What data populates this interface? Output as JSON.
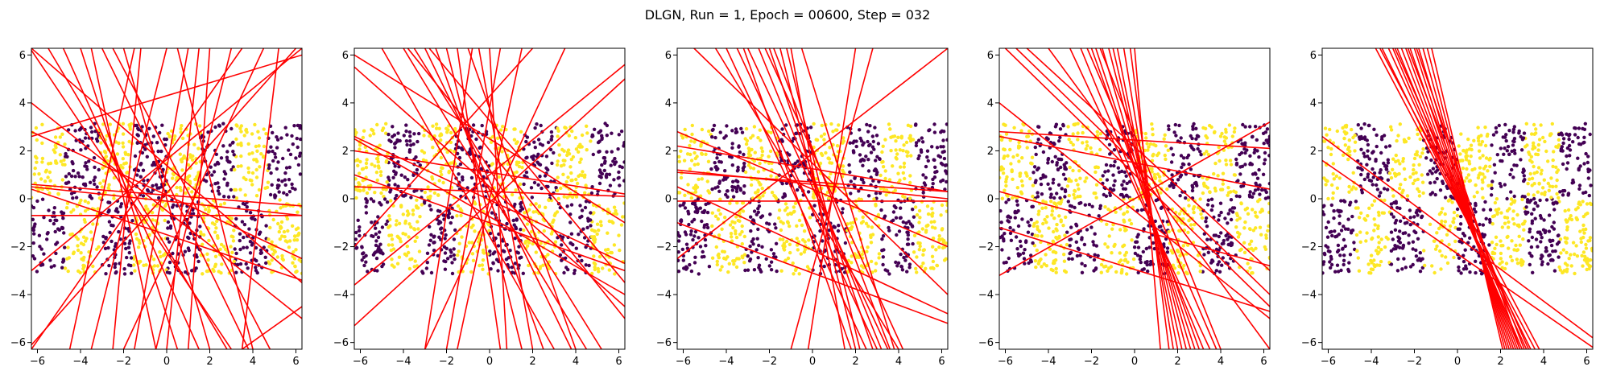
{
  "figure": {
    "title": "DLGN, Run = 1, Epoch = 00600, Step = 032"
  },
  "colors": {
    "class0": "#440154",
    "class1": "#fde725",
    "lines": "#ff0000"
  },
  "chart_data": {
    "type": "scatter",
    "title": "DLGN, Run = 1, Epoch = 00600, Step = 032",
    "xlim": [
      -6.28,
      6.28
    ],
    "ylim": [
      -6.28,
      6.28
    ],
    "xticks": [
      -6,
      -4,
      -2,
      0,
      2,
      4,
      6
    ],
    "yticks": [
      -6,
      -4,
      -2,
      0,
      2,
      4,
      6
    ],
    "grid": false,
    "data_region": {
      "x": [
        -6.28,
        6.28
      ],
      "y": [
        -3.14,
        3.14
      ]
    },
    "class_pattern": "checkerboard: alternating column bands of width 1.57; upper half (y>0) and lower half (y<0) colors swapped",
    "panels": [
      {
        "type": "scatter",
        "lines": [
          [
            -6.28,
            6.2,
            3.0,
            -6.28
          ],
          [
            -6.28,
            -6.1,
            6.0,
            6.28
          ],
          [
            -6.28,
            2.6,
            6.28,
            6.0
          ],
          [
            -6.28,
            0.6,
            6.28,
            -0.3
          ],
          [
            -6.28,
            0.5,
            6.28,
            -0.7
          ],
          [
            -6.28,
            0.4,
            6.28,
            -3.4
          ],
          [
            -6.28,
            -0.7,
            6.28,
            -0.7
          ],
          [
            -6.28,
            -6.28,
            3.5,
            6.28
          ],
          [
            -5.5,
            6.28,
            2.8,
            -6.28
          ],
          [
            -4.8,
            6.28,
            1.5,
            -6.28
          ],
          [
            -4.0,
            6.28,
            0.5,
            -6.28
          ],
          [
            -3.5,
            6.28,
            -0.5,
            -6.28
          ],
          [
            -3.0,
            6.28,
            3.8,
            -6.28
          ],
          [
            -2.5,
            6.28,
            4.8,
            -6.28
          ],
          [
            -2.0,
            6.28,
            2.0,
            -6.28
          ],
          [
            -1.5,
            6.28,
            -4.5,
            -6.28
          ],
          [
            -1.2,
            6.28,
            -2.5,
            -6.28
          ],
          [
            0.0,
            6.28,
            -3.5,
            -6.28
          ],
          [
            1.0,
            6.28,
            -1.5,
            -6.28
          ],
          [
            1.5,
            6.28,
            0.0,
            -6.28
          ],
          [
            2.0,
            6.28,
            1.0,
            -6.28
          ],
          [
            3.0,
            6.28,
            -0.5,
            -6.28
          ],
          [
            4.5,
            6.28,
            -2.0,
            -6.28
          ],
          [
            5.2,
            6.28,
            3.5,
            -6.28
          ],
          [
            -6.28,
            2.8,
            6.28,
            -2.5
          ],
          [
            0.5,
            6.28,
            4.0,
            -6.28
          ],
          [
            -6.28,
            6.28,
            6.28,
            -3.5
          ],
          [
            -6.28,
            -3.0,
            6.28,
            6.28
          ],
          [
            -6.28,
            4.0,
            6.28,
            -5.0
          ],
          [
            3.5,
            -6.28,
            6.28,
            -4.5
          ]
        ]
      },
      {
        "type": "scatter",
        "lines": [
          [
            -6.28,
            6.0,
            6.28,
            -1.0
          ],
          [
            -6.28,
            5.5,
            6.28,
            -4.5
          ],
          [
            -6.28,
            2.6,
            6.28,
            -2.7
          ],
          [
            -6.28,
            0.5,
            6.28,
            0.1
          ],
          [
            -6.28,
            -3.6,
            6.28,
            5.6
          ],
          [
            -6.28,
            -5.3,
            6.28,
            5.0
          ],
          [
            -6.28,
            2.5,
            6.28,
            -4.0
          ],
          [
            -5.0,
            6.28,
            3.0,
            -6.28
          ],
          [
            -4.0,
            6.28,
            4.5,
            -6.28
          ],
          [
            -3.5,
            6.28,
            5.2,
            -6.28
          ],
          [
            -3.0,
            6.28,
            3.8,
            -6.28
          ],
          [
            -2.5,
            6.28,
            2.5,
            -6.28
          ],
          [
            -2.0,
            6.28,
            1.5,
            -6.28
          ],
          [
            -1.5,
            6.28,
            0.5,
            -6.28
          ],
          [
            -1.0,
            6.28,
            4.0,
            -6.28
          ],
          [
            -0.5,
            6.28,
            2.0,
            -6.28
          ],
          [
            0.5,
            6.28,
            -2.0,
            -6.28
          ],
          [
            1.5,
            6.28,
            -1.5,
            -6.28
          ],
          [
            3.5,
            6.28,
            -3.0,
            -6.28
          ],
          [
            -6.28,
            2.0,
            6.28,
            0.2
          ],
          [
            -6.28,
            1.0,
            6.28,
            -3.0
          ],
          [
            -3.8,
            6.28,
            6.28,
            -5.0
          ],
          [
            -2.8,
            6.28,
            6.28,
            -3.5
          ],
          [
            -0.8,
            6.28,
            -3.0,
            -6.28
          ],
          [
            -6.28,
            -2.0,
            2.0,
            6.28
          ],
          [
            0.0,
            6.28,
            0.8,
            -6.28
          ]
        ]
      },
      {
        "type": "scatter",
        "lines": [
          [
            -6.28,
            2.8,
            6.28,
            -2.0
          ],
          [
            -6.28,
            2.2,
            6.28,
            0.3
          ],
          [
            -6.28,
            1.2,
            6.28,
            0.0
          ],
          [
            -6.28,
            0.5,
            6.28,
            -4.8
          ],
          [
            -6.28,
            1.1,
            6.28,
            0.3
          ],
          [
            -6.28,
            -0.1,
            6.28,
            -0.1
          ],
          [
            -5.5,
            6.28,
            6.28,
            -4.0
          ],
          [
            -4.5,
            6.28,
            4.0,
            -6.28
          ],
          [
            -4.0,
            6.28,
            2.5,
            -6.28
          ],
          [
            -3.5,
            6.28,
            3.0,
            -6.28
          ],
          [
            -3.0,
            6.28,
            3.5,
            -6.28
          ],
          [
            -2.5,
            6.28,
            3.2,
            -6.28
          ],
          [
            -2.0,
            6.28,
            2.8,
            -6.28
          ],
          [
            -1.5,
            6.28,
            2.0,
            -6.28
          ],
          [
            -1.0,
            6.28,
            1.5,
            -6.28
          ],
          [
            -0.5,
            6.28,
            3.8,
            -6.28
          ],
          [
            -1.2,
            6.28,
            2.2,
            -6.28
          ],
          [
            -1.8,
            6.28,
            3.6,
            -6.28
          ],
          [
            2.0,
            6.28,
            -0.2,
            -6.28
          ],
          [
            2.8,
            6.28,
            -1.0,
            -6.28
          ],
          [
            -6.28,
            -1.0,
            6.28,
            -5.2
          ],
          [
            -6.28,
            -2.5,
            6.28,
            6.28
          ],
          [
            -3.2,
            6.28,
            1.8,
            -6.28
          ],
          [
            -2.2,
            6.28,
            4.2,
            -6.28
          ]
        ]
      },
      {
        "type": "scatter",
        "lines": [
          [
            -6.28,
            4.0,
            6.28,
            -5.0
          ],
          [
            -6.28,
            2.8,
            6.28,
            2.1
          ],
          [
            -6.28,
            2.6,
            6.28,
            0.4
          ],
          [
            -6.28,
            -1.2,
            6.28,
            -4.7
          ],
          [
            -6.28,
            -3.2,
            6.28,
            3.2
          ],
          [
            -6.0,
            6.28,
            6.28,
            -4.5
          ],
          [
            -5.5,
            6.28,
            6.28,
            -4.0
          ],
          [
            -5.0,
            6.28,
            6.28,
            -3.0
          ],
          [
            -3.0,
            6.28,
            3.5,
            -6.28
          ],
          [
            -2.5,
            6.28,
            3.2,
            -6.28
          ],
          [
            -2.0,
            6.28,
            3.0,
            -6.28
          ],
          [
            -1.8,
            6.28,
            2.8,
            -6.28
          ],
          [
            -1.5,
            6.28,
            2.6,
            -6.28
          ],
          [
            -1.2,
            6.28,
            2.4,
            -6.28
          ],
          [
            -1.0,
            6.28,
            2.2,
            -6.28
          ],
          [
            -0.8,
            6.28,
            2.0,
            -6.28
          ],
          [
            -0.5,
            6.28,
            1.8,
            -6.28
          ],
          [
            -0.2,
            6.28,
            1.6,
            -6.28
          ],
          [
            -4.0,
            6.28,
            6.28,
            -6.28
          ],
          [
            -2.2,
            6.28,
            3.8,
            -6.28
          ],
          [
            -1.6,
            6.28,
            4.0,
            -6.28
          ],
          [
            0.0,
            6.28,
            1.2,
            -6.28
          ],
          [
            -6.28,
            0.3,
            6.28,
            -2.8
          ]
        ]
      },
      {
        "type": "scatter",
        "lines": [
          [
            -6.28,
            2.6,
            6.28,
            -5.8
          ],
          [
            -6.28,
            1.6,
            6.28,
            -6.2
          ],
          [
            -3.8,
            6.28,
            3.6,
            -6.28
          ],
          [
            -3.5,
            6.28,
            3.4,
            -6.28
          ],
          [
            -3.2,
            6.28,
            3.2,
            -6.28
          ],
          [
            -3.0,
            6.28,
            3.0,
            -6.28
          ],
          [
            -2.8,
            6.28,
            2.9,
            -6.28
          ],
          [
            -2.6,
            6.28,
            2.8,
            -6.28
          ],
          [
            -2.4,
            6.28,
            2.7,
            -6.28
          ],
          [
            -2.2,
            6.28,
            2.6,
            -6.28
          ],
          [
            -2.0,
            6.28,
            2.5,
            -6.28
          ],
          [
            -1.8,
            6.28,
            2.4,
            -6.28
          ],
          [
            -1.6,
            6.28,
            2.3,
            -6.28
          ],
          [
            -1.4,
            6.28,
            2.2,
            -6.28
          ],
          [
            -1.2,
            6.28,
            2.1,
            -6.28
          ],
          [
            -3.6,
            6.28,
            3.8,
            -6.28
          ],
          [
            -2.9,
            6.28,
            3.3,
            -6.28
          ],
          [
            -2.3,
            6.28,
            3.1,
            -6.28
          ],
          [
            -1.9,
            6.28,
            2.9,
            -6.28
          ]
        ]
      }
    ]
  }
}
